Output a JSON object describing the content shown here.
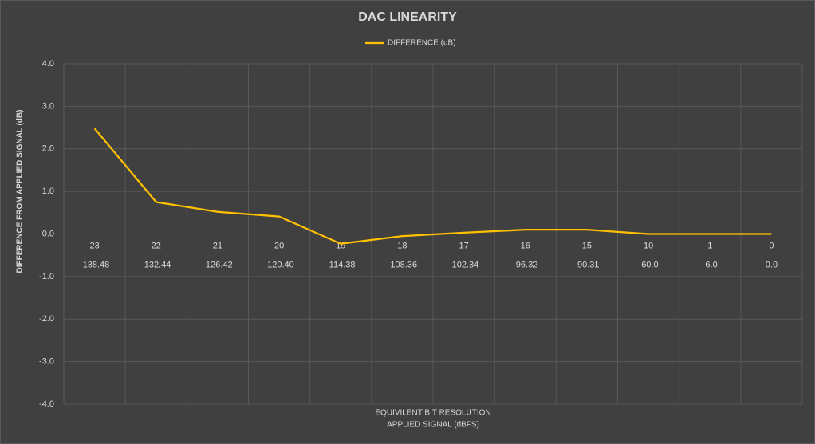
{
  "chart_data": {
    "type": "line",
    "title": "DAC LINEARITY",
    "y_axis_label": "DIFFERENCE FROM APPLIED SIGNAL  (dB)",
    "x_axis_label": "EQUIVILENT BIT  RESOLUTION",
    "x_axis_label_2": "APPLIED SIGNAL (dBFS)",
    "categories": [
      "23",
      "22",
      "21",
      "20",
      "19",
      "18",
      "17",
      "16",
      "15",
      "10",
      "1",
      "0"
    ],
    "category_sublabels": [
      "-138.48",
      "-132.44",
      "-126.42",
      "-120.40",
      "-114.38",
      "-108.36",
      "-102.34",
      "-96.32",
      "-90.31",
      "-60.0",
      "-6.0",
      "0.0"
    ],
    "series": [
      {
        "name": "DIFFERENCE (dB)",
        "color": "#ffc000",
        "values": [
          2.48,
          0.75,
          0.52,
          0.41,
          -0.23,
          -0.05,
          0.03,
          0.1,
          0.1,
          0.0,
          0.0,
          0.0
        ]
      }
    ],
    "ylim": [
      -4,
      4
    ],
    "yticks": [
      {
        "value": -4,
        "label": "-4.0"
      },
      {
        "value": -3,
        "label": "-3.0"
      },
      {
        "value": -2,
        "label": "-2.0"
      },
      {
        "value": -1,
        "label": "-1.0"
      },
      {
        "value": 0,
        "label": "0.0"
      },
      {
        "value": 1,
        "label": "1.0"
      },
      {
        "value": 2,
        "label": "2.0"
      },
      {
        "value": 3,
        "label": "3.0"
      },
      {
        "value": 4,
        "label": "4.0"
      }
    ],
    "grid": true,
    "legend": "top"
  }
}
